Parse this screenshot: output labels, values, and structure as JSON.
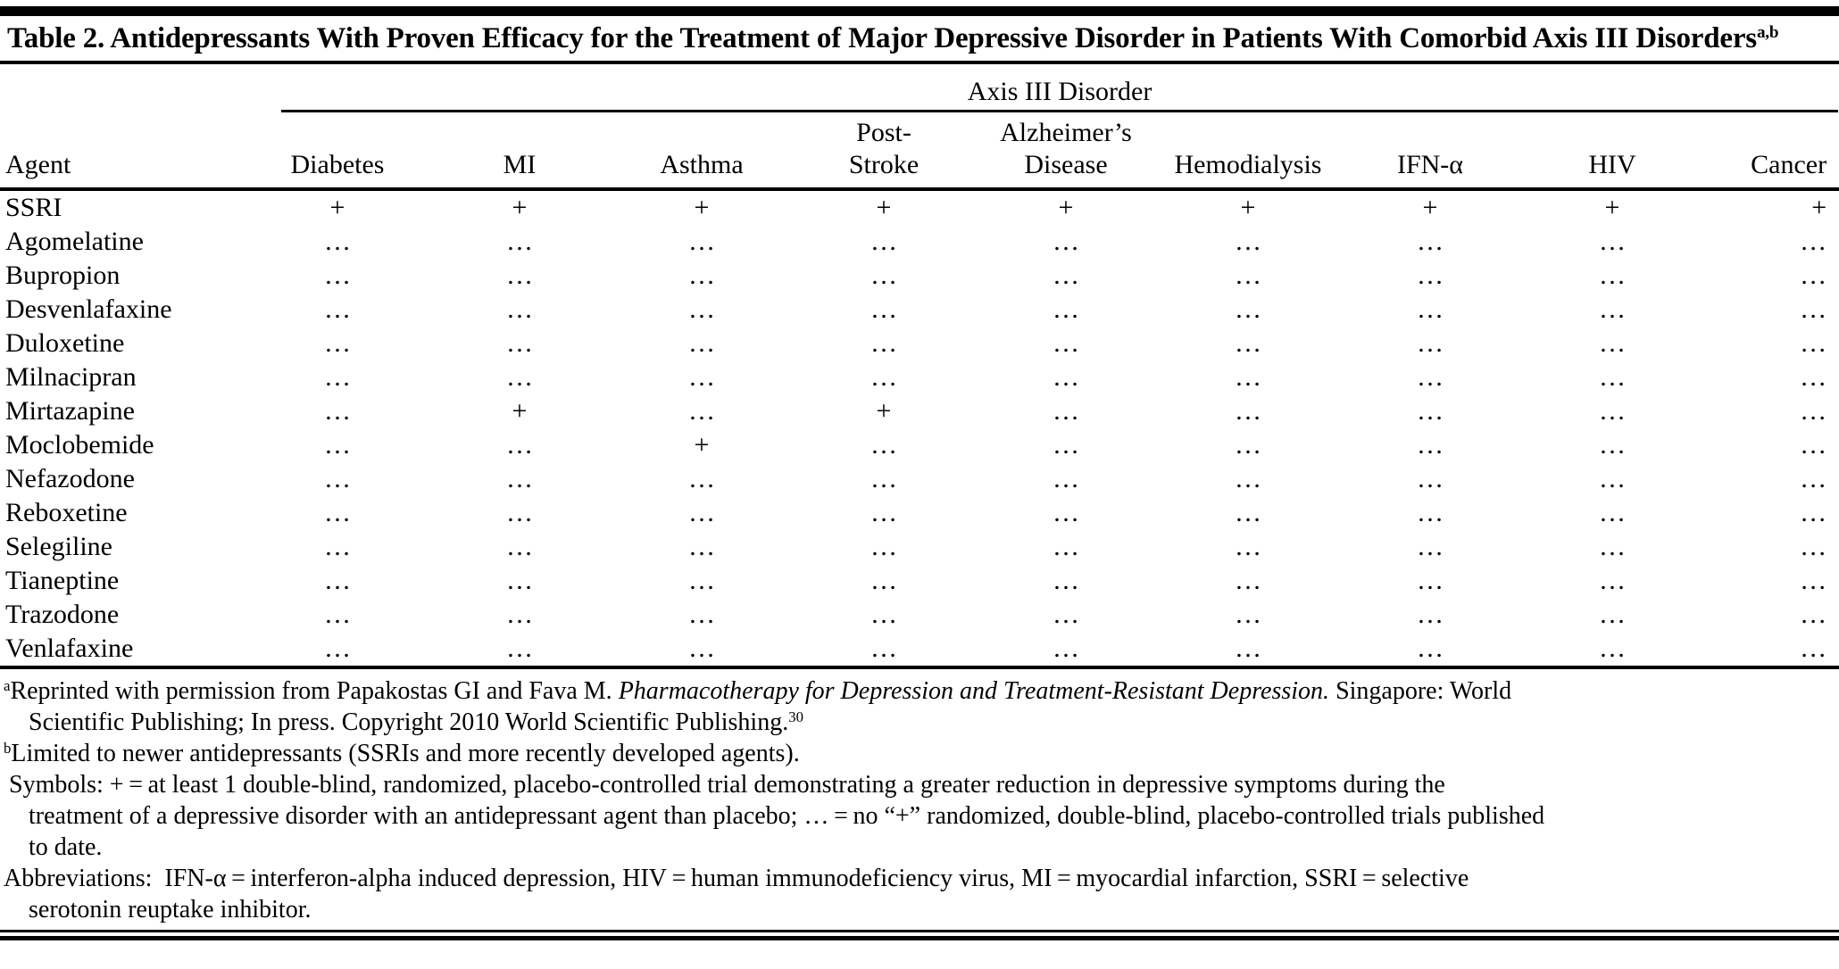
{
  "colors": {
    "text": "#000000",
    "background": "#ffffff",
    "rule": "#000000"
  },
  "table": {
    "title": "Table 2. Antidepressants With Proven Efficacy for the Treatment of Major Depressive Disorder in Patients With Comorbid Axis III Disorders",
    "title_superscript": "a,b",
    "spanner": "Axis III Disorder",
    "columns": [
      {
        "label": "Agent"
      },
      {
        "label": "Diabetes"
      },
      {
        "label": "MI"
      },
      {
        "label": "Asthma"
      },
      {
        "label": "Post-",
        "label2": "Stroke"
      },
      {
        "label": "Alzheimer’s",
        "label2": "Disease"
      },
      {
        "label": "Hemodialysis"
      },
      {
        "label": "IFN-α"
      },
      {
        "label": "HIV"
      },
      {
        "label": "Cancer"
      }
    ],
    "rows": [
      {
        "agent": "SSRI",
        "cells": [
          "+",
          "+",
          "+",
          "+",
          "+",
          "+",
          "+",
          "+",
          "+"
        ]
      },
      {
        "agent": "Agomelatine",
        "cells": [
          "…",
          "…",
          "…",
          "…",
          "…",
          "…",
          "…",
          "…",
          "…"
        ]
      },
      {
        "agent": "Bupropion",
        "cells": [
          "…",
          "…",
          "…",
          "…",
          "…",
          "…",
          "…",
          "…",
          "…"
        ]
      },
      {
        "agent": "Desvenlafaxine",
        "cells": [
          "…",
          "…",
          "…",
          "…",
          "…",
          "…",
          "…",
          "…",
          "…"
        ]
      },
      {
        "agent": "Duloxetine",
        "cells": [
          "…",
          "…",
          "…",
          "…",
          "…",
          "…",
          "…",
          "…",
          "…"
        ]
      },
      {
        "agent": "Milnacipran",
        "cells": [
          "…",
          "…",
          "…",
          "…",
          "…",
          "…",
          "…",
          "…",
          "…"
        ]
      },
      {
        "agent": "Mirtazapine",
        "cells": [
          "…",
          "+",
          "…",
          "+",
          "…",
          "…",
          "…",
          "…",
          "…"
        ]
      },
      {
        "agent": "Moclobemide",
        "cells": [
          "…",
          "…",
          "+",
          "…",
          "…",
          "…",
          "…",
          "…",
          "…"
        ]
      },
      {
        "agent": "Nefazodone",
        "cells": [
          "…",
          "…",
          "…",
          "…",
          "…",
          "…",
          "…",
          "…",
          "…"
        ]
      },
      {
        "agent": "Reboxetine",
        "cells": [
          "…",
          "…",
          "…",
          "…",
          "…",
          "…",
          "…",
          "…",
          "…"
        ]
      },
      {
        "agent": "Selegiline",
        "cells": [
          "…",
          "…",
          "…",
          "…",
          "…",
          "…",
          "…",
          "…",
          "…"
        ]
      },
      {
        "agent": "Tianeptine",
        "cells": [
          "…",
          "…",
          "…",
          "…",
          "…",
          "…",
          "…",
          "…",
          "…"
        ]
      },
      {
        "agent": "Trazodone",
        "cells": [
          "…",
          "…",
          "…",
          "…",
          "…",
          "…",
          "…",
          "…",
          "…"
        ]
      },
      {
        "agent": "Venlafaxine",
        "cells": [
          "…",
          "…",
          "…",
          "…",
          "…",
          "…",
          "…",
          "…",
          "…"
        ]
      }
    ]
  },
  "footnotes": {
    "lines": [
      {
        "indent": false,
        "segments": [
          {
            "text": "a",
            "sup": true
          },
          {
            "text": "Reprinted with permission from Papakostas GI and Fava M. "
          },
          {
            "text": "Pharmacotherapy for Depression and Treatment-Resistant Depression.",
            "italic": true
          },
          {
            "text": " Singapore: World"
          }
        ]
      },
      {
        "indent": true,
        "segments": [
          {
            "text": "Scientific Publishing; In press. Copyright 2010 World Scientific Publishing."
          },
          {
            "text": "30",
            "sup": true
          }
        ]
      },
      {
        "indent": false,
        "segments": [
          {
            "text": "b",
            "sup": true
          },
          {
            "text": "Limited to newer antidepressants (SSRIs and more recently developed agents)."
          }
        ]
      },
      {
        "indent": false,
        "pad": 6,
        "segments": [
          {
            "text": "Symbols: + = at least 1 double-blind, randomized, placebo-controlled trial demonstrating a greater reduction in depressive symptoms during the"
          }
        ]
      },
      {
        "indent": true,
        "segments": [
          {
            "text": "treatment of a depressive disorder with an antidepressant agent than placebo; … = no “+” randomized, double-blind, placebo-controlled trials published"
          }
        ]
      },
      {
        "indent": true,
        "segments": [
          {
            "text": "to date."
          }
        ]
      },
      {
        "indent": false,
        "segments": [
          {
            "text": "Abbreviations:  IFN-α = interferon-alpha induced depression, HIV = human immunodeficiency virus, MI = myocardial infarction, SSRI = selective"
          }
        ]
      },
      {
        "indent": true,
        "segments": [
          {
            "text": "serotonin reuptake inhibitor."
          }
        ]
      }
    ]
  }
}
